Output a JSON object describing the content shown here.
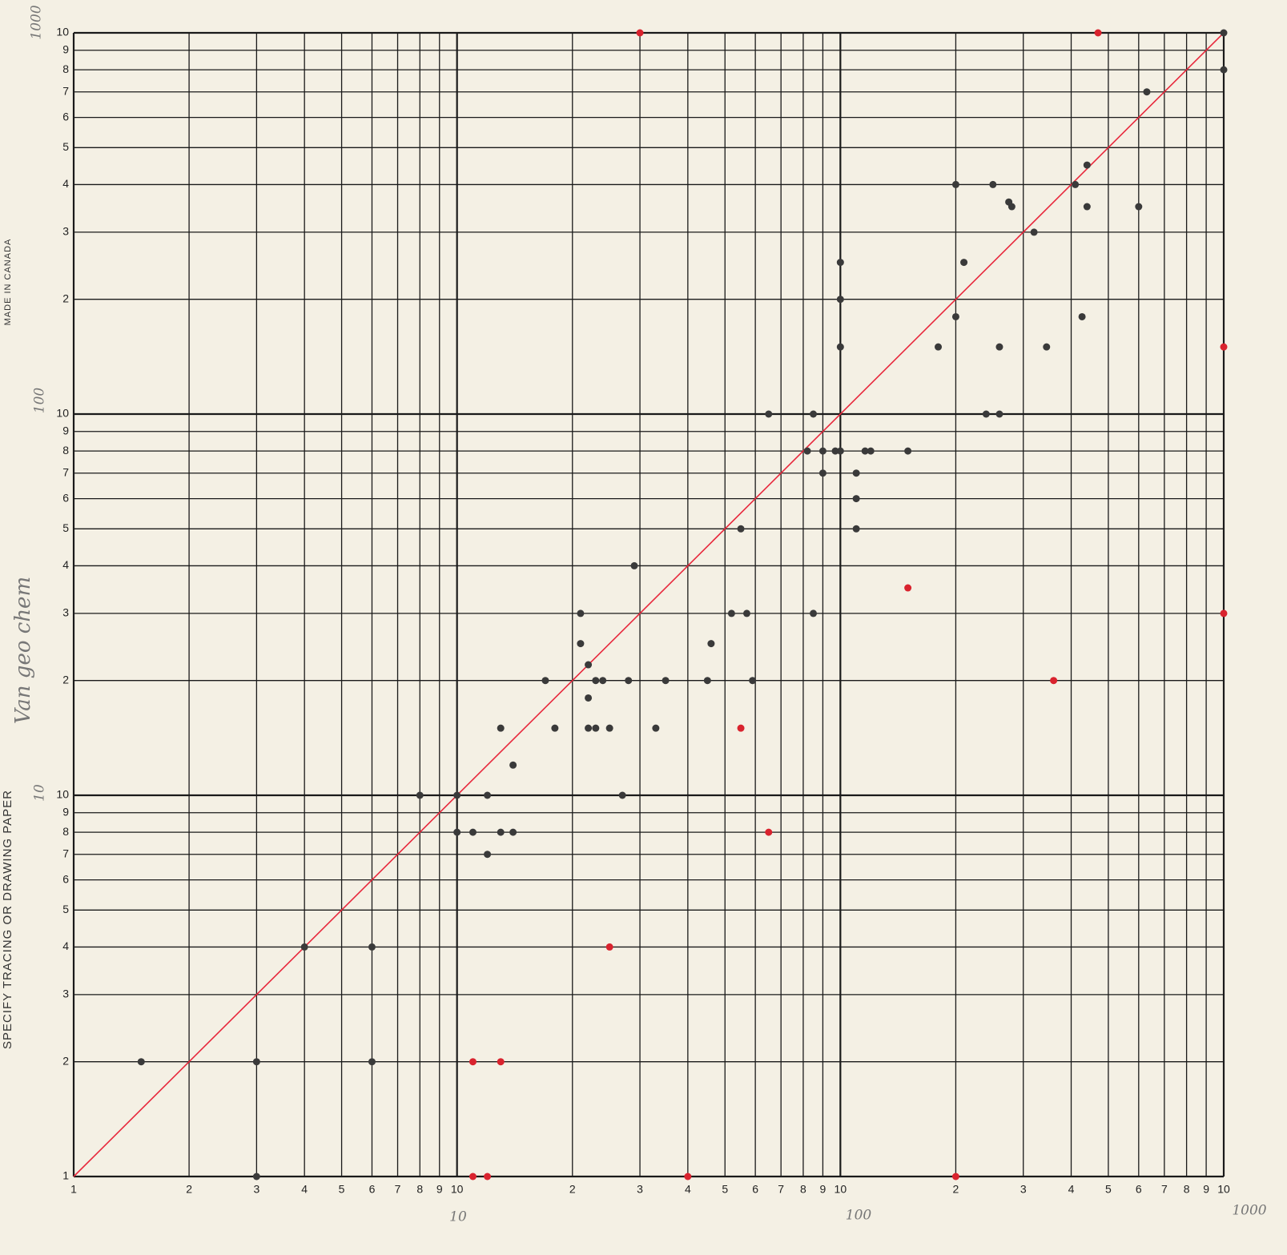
{
  "chart_data": {
    "type": "scatter",
    "log_x": true,
    "log_y": true,
    "grid": true,
    "xlim": [
      1,
      1000
    ],
    "ylim": [
      1,
      1000
    ],
    "xticks": [
      1,
      2,
      3,
      4,
      5,
      6,
      7,
      8,
      9,
      10,
      {
        "value": 20,
        "label": "2"
      },
      {
        "value": 30,
        "label": "3"
      },
      {
        "value": 40,
        "label": "4"
      },
      {
        "value": 50,
        "label": "5"
      },
      {
        "value": 60,
        "label": "6"
      },
      {
        "value": 70,
        "label": "7"
      },
      {
        "value": 80,
        "label": "8"
      },
      {
        "value": 90,
        "label": "9"
      },
      {
        "value": 100,
        "label": "10"
      },
      {
        "value": 200,
        "label": "2"
      },
      {
        "value": 300,
        "label": "3"
      },
      {
        "value": 400,
        "label": "4"
      },
      {
        "value": 500,
        "label": "5"
      },
      {
        "value": 600,
        "label": "6"
      },
      {
        "value": 700,
        "label": "7"
      },
      {
        "value": 800,
        "label": "8"
      },
      {
        "value": 900,
        "label": "9"
      },
      {
        "value": 1000,
        "label": "10"
      }
    ],
    "yticks": [
      1,
      2,
      3,
      4,
      5,
      6,
      7,
      8,
      9,
      10,
      {
        "value": 20,
        "label": "2"
      },
      {
        "value": 30,
        "label": "3"
      },
      {
        "value": 40,
        "label": "4"
      },
      {
        "value": 50,
        "label": "5"
      },
      {
        "value": 60,
        "label": "6"
      },
      {
        "value": 70,
        "label": "7"
      },
      {
        "value": 80,
        "label": "8"
      },
      {
        "value": 90,
        "label": "9"
      },
      {
        "value": 100,
        "label": "10"
      },
      {
        "value": 200,
        "label": "2"
      },
      {
        "value": 300,
        "label": "3"
      },
      {
        "value": 400,
        "label": "4"
      },
      {
        "value": 500,
        "label": "5"
      },
      {
        "value": 600,
        "label": "6"
      },
      {
        "value": 700,
        "label": "7"
      },
      {
        "value": 800,
        "label": "8"
      },
      {
        "value": 900,
        "label": "9"
      },
      {
        "value": 1000,
        "label": "10"
      }
    ],
    "diagonal_color": "#e8283c",
    "series": [
      {
        "color": "#3a3a3a",
        "x": [
          1.5,
          3,
          3,
          4,
          6,
          6,
          8,
          10,
          10,
          11,
          12,
          12,
          13,
          13,
          14,
          14,
          17,
          18,
          21,
          21,
          22,
          22,
          22,
          23,
          23,
          24,
          25,
          27,
          28,
          29,
          33,
          35,
          45,
          46,
          52,
          55,
          57,
          59,
          65,
          82,
          85,
          85,
          90,
          90,
          97,
          100,
          100,
          100,
          100,
          110,
          110,
          110,
          116,
          120,
          150,
          180,
          200,
          200,
          210,
          240,
          250,
          260,
          260,
          275,
          280,
          320,
          345,
          410,
          427,
          440,
          440,
          600,
          630,
          1000,
          1000
        ],
        "y": [
          2,
          1,
          2,
          4,
          4,
          2,
          10,
          10,
          8,
          8,
          10,
          7,
          15,
          8,
          8,
          12,
          20,
          15,
          30,
          25,
          22,
          18,
          15,
          20,
          15,
          20,
          15,
          10,
          20,
          40,
          15,
          20,
          20,
          25,
          30,
          50,
          30,
          20,
          100,
          80,
          100,
          30,
          80,
          70,
          80,
          80,
          150,
          200,
          250,
          50,
          60,
          70,
          80,
          80,
          80,
          150,
          180,
          400,
          250,
          100,
          400,
          150,
          100,
          360,
          350,
          300,
          150,
          400,
          180,
          450,
          350,
          350,
          700,
          800,
          1000
        ]
      },
      {
        "color": "#d9232e",
        "x": [
          30,
          470,
          1000,
          1000,
          360,
          150,
          55,
          65,
          25,
          11,
          13,
          11,
          12,
          40,
          200
        ],
        "y": [
          1000,
          1000,
          150,
          30,
          20,
          35,
          15,
          8,
          4,
          2,
          2,
          1,
          1,
          1,
          1
        ]
      }
    ],
    "annotations": {
      "x_decades": [
        "10",
        "100",
        "1000"
      ],
      "y_decades": [
        "1000",
        "100",
        "10"
      ],
      "handwritten_note": "Van geo chem",
      "maker": "MADE IN CANADA",
      "paper": "SPECIFY TRACING OR DRAWING PAPER"
    }
  }
}
